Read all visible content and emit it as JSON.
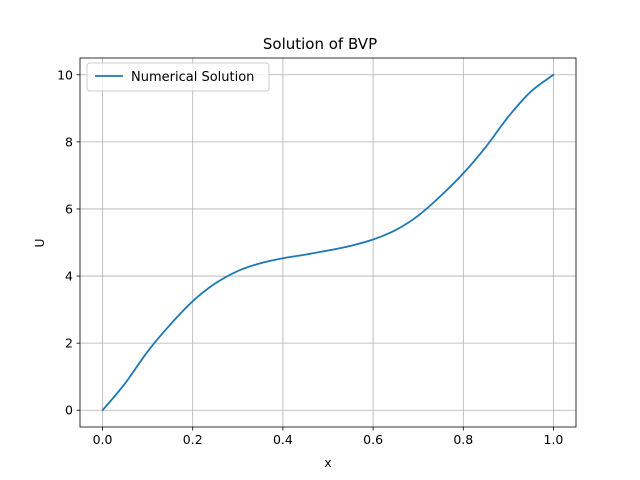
{
  "chart_data": {
    "type": "line",
    "title": "Solution of BVP",
    "xlabel": "x",
    "ylabel": "U",
    "xlim": [
      -0.05,
      1.05
    ],
    "ylim": [
      -0.5,
      10.5
    ],
    "x_ticks": [
      0.0,
      0.2,
      0.4,
      0.6,
      0.8,
      1.0
    ],
    "x_tick_labels": [
      "0.0",
      "0.2",
      "0.4",
      "0.6",
      "0.8",
      "1.0"
    ],
    "y_ticks": [
      0,
      2,
      4,
      6,
      8,
      10
    ],
    "y_tick_labels": [
      "0",
      "2",
      "4",
      "6",
      "8",
      "10"
    ],
    "grid": true,
    "legend_position": "upper-left",
    "series": [
      {
        "name": "Numerical Solution",
        "color": "#1f77b4",
        "x": [
          0.0,
          0.05,
          0.1,
          0.15,
          0.2,
          0.25,
          0.3,
          0.35,
          0.4,
          0.45,
          0.5,
          0.55,
          0.6,
          0.65,
          0.7,
          0.75,
          0.8,
          0.85,
          0.9,
          0.95,
          1.0
        ],
        "y": [
          0.0,
          0.8,
          1.75,
          2.55,
          3.25,
          3.78,
          4.15,
          4.38,
          4.53,
          4.64,
          4.76,
          4.9,
          5.09,
          5.37,
          5.8,
          6.39,
          7.06,
          7.85,
          8.75,
          9.5,
          10.0
        ]
      }
    ]
  }
}
